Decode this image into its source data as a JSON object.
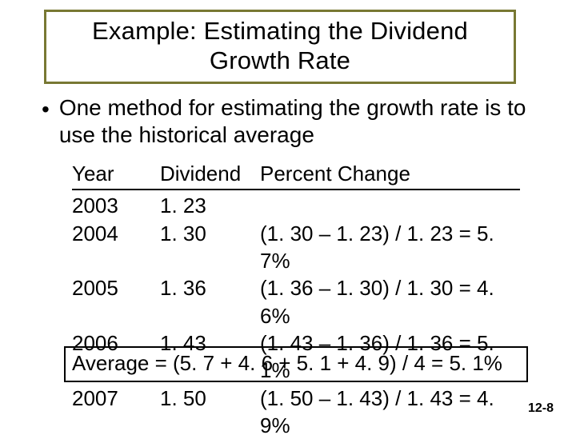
{
  "title": "Example: Estimating the Dividend Growth Rate",
  "bullet": "One method for estimating the growth rate is to use the historical average",
  "table": {
    "headers": {
      "year": "Year",
      "dividend": "Dividend",
      "pct": "Percent Change"
    },
    "rows": [
      {
        "year": "2003",
        "dividend": "1. 23",
        "pct": ""
      },
      {
        "year": "2004",
        "dividend": "1. 30",
        "pct": "(1. 30 – 1. 23) / 1. 23 = 5. 7%"
      },
      {
        "year": "2005",
        "dividend": "1. 36",
        "pct": "(1. 36 – 1. 30) / 1. 30 = 4. 6%"
      },
      {
        "year": "2006",
        "dividend": "1. 43",
        "pct": "(1. 43 – 1. 36) / 1. 36 = 5. 1%"
      },
      {
        "year": "2007",
        "dividend": "1. 50",
        "pct": "(1. 50 – 1. 43) / 1. 43 = 4. 9%"
      }
    ]
  },
  "average": "Average = (5. 7 + 4. 6 + 5. 1 + 4. 9) / 4 = 5. 1%",
  "page": "12-8",
  "colors": {
    "title_border": "#787833",
    "background": "#ffffff",
    "text": "#000000"
  },
  "fonts": {
    "family": "Arial",
    "title_size_pt": 31,
    "body_size_pt": 28,
    "table_size_pt": 26,
    "pagenum_size_pt": 16
  }
}
